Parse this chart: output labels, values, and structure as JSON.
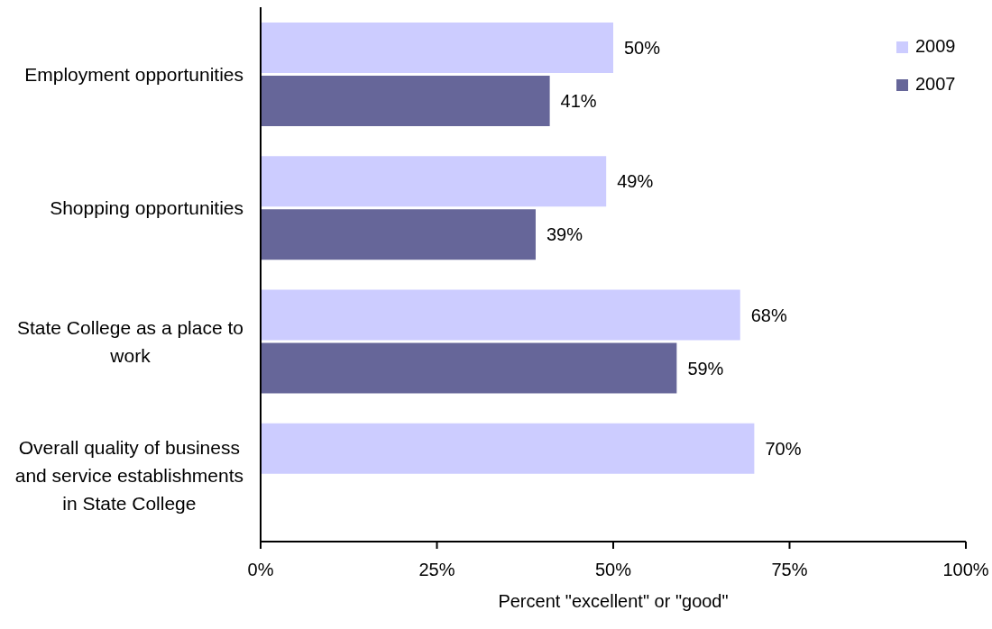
{
  "chart_data": {
    "type": "bar",
    "orientation": "horizontal",
    "categories": [
      "Employment opportunities",
      "Shopping opportunities",
      "State College as a place to work",
      "Overall quality of business and service establishments in State College"
    ],
    "series": [
      {
        "name": "2009",
        "color": "#ccccff",
        "values": [
          50,
          49,
          68,
          70
        ],
        "value_labels": [
          "50%",
          "49%",
          "68%",
          "70%"
        ]
      },
      {
        "name": "2007",
        "color": "#666699",
        "values": [
          41,
          39,
          59,
          null
        ],
        "value_labels": [
          "41%",
          "39%",
          "59%",
          null
        ]
      }
    ],
    "xlabel": "Percent \"excellent\" or \"good\"",
    "xlim": [
      0,
      100
    ],
    "xticks": [
      {
        "value": 0,
        "label": "0%"
      },
      {
        "value": 25,
        "label": "25%"
      },
      {
        "value": 50,
        "label": "50%"
      },
      {
        "value": 75,
        "label": "75%"
      },
      {
        "value": 100,
        "label": "100%"
      }
    ],
    "legend": "top right"
  }
}
